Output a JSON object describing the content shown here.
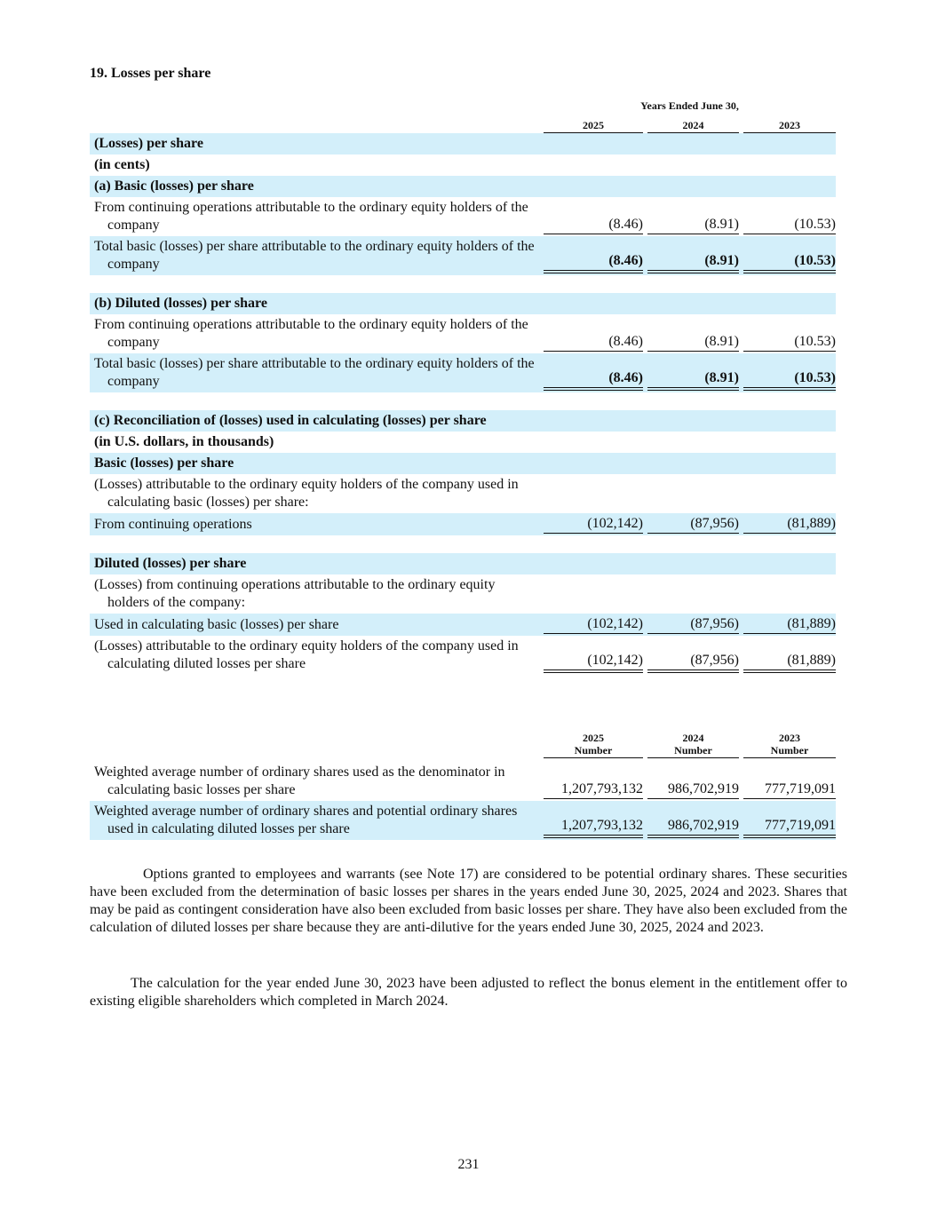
{
  "title": "19. Losses per share",
  "table": {
    "header": "Years Ended June 30,",
    "columns": [
      "2025",
      "2024",
      "2023"
    ],
    "rows": [
      [
        "(Losses) per share"
      ],
      [
        "(in cents)"
      ],
      [
        "(a) Basic (losses) per share"
      ],
      [
        "From continuing operations attributable to the ordinary equity holders of the company",
        "(8.46)",
        "(8.91)",
        "(10.53)"
      ],
      [
        "Total basic (losses) per share attributable to the ordinary equity holders of the company",
        "(8.46)",
        "(8.91)",
        "(10.53)"
      ],
      [
        "(b) Diluted (losses) per share"
      ],
      [
        "From continuing operations attributable to the ordinary equity holders of the company",
        "(8.46)",
        "(8.91)",
        "(10.53)"
      ],
      [
        "Total basic (losses) per share attributable to the ordinary equity holders of the company",
        "(8.46)",
        "(8.91)",
        "(10.53)"
      ],
      [
        "(c) Reconciliation of (losses) used in calculating (losses) per share"
      ],
      [
        "(in U.S. dollars, in thousands)"
      ],
      [
        "Basic (losses) per share"
      ],
      [
        "(Losses) attributable to the ordinary equity holders of the company used in calculating basic (losses) per share:"
      ],
      [
        "From continuing operations",
        "(102,142)",
        "(87,956)",
        "(81,889)"
      ],
      [
        "Diluted (losses) per share"
      ],
      [
        "(Losses) from continuing operations attributable to the ordinary equity holders of the company:"
      ],
      [
        "Used in calculating basic (losses) per share",
        "(102,142)",
        "(87,956)",
        "(81,889)"
      ],
      [
        "(Losses) attributable to the ordinary equity holders of the company used in calculating diluted losses per share",
        "(102,142)",
        "(87,956)",
        "(81,889)"
      ]
    ]
  },
  "shares_table": {
    "columns": [
      {
        "year": "2025",
        "unit": "Number"
      },
      {
        "year": "2024",
        "unit": "Number"
      },
      {
        "year": "2023",
        "unit": "Number"
      }
    ],
    "rows": [
      [
        "Weighted average number of ordinary shares used as the denominator in calculating basic losses per share",
        "1,207,793,132",
        "986,702,919",
        "777,719,091"
      ],
      [
        "Weighted average number of ordinary shares and potential ordinary shares used in calculating diluted losses per share",
        "1,207,793,132",
        "986,702,919",
        "777,719,091"
      ]
    ]
  },
  "paragraphs": [
    "Options granted to employees and warrants (see Note 17) are considered to be potential ordinary shares. These securities have been excluded from the determination of basic losses per shares in the years ended June 30, 2025, 2024 and 2023. Shares that may be paid as contingent consideration have also been excluded from basic losses per share. They have also been excluded from the calculation of diluted losses per share because they are anti-dilutive for the years ended June 30, 2025, 2024 and 2023.",
    "The calculation for the year ended June 30, 2023 have been adjusted to reflect the bonus element in the entitlement offer to existing eligible shareholders which completed in March 2024."
  ],
  "page_number": "231"
}
